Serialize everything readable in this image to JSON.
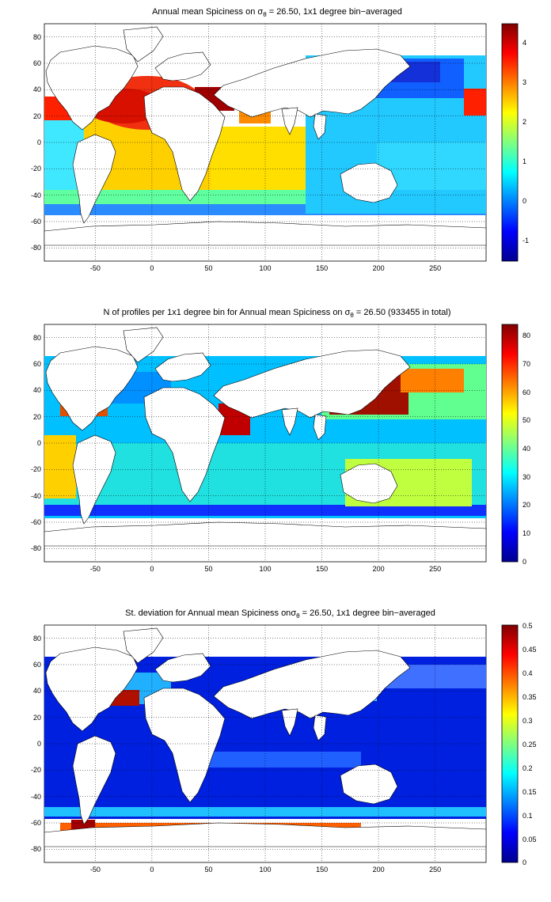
{
  "figure": {
    "background": "#ffffff",
    "panels": [
      {
        "title_before": "Annual mean Spiciness on ",
        "sigma": "σ",
        "theta": "θ",
        "title_after": " = 26.50, 1x1 degree bin−averaged",
        "variable": "Annual mean Spiciness",
        "x_ticks": [
          "-50",
          "0",
          "50",
          "100",
          "150",
          "200",
          "250"
        ],
        "y_ticks": [
          "80",
          "60",
          "40",
          "20",
          "0",
          "-20",
          "-40",
          "-60",
          "-80"
        ],
        "xlim": [
          -95,
          295
        ],
        "ylim": [
          -90,
          90
        ],
        "colorbar": {
          "ticks": [
            "4",
            "3",
            "2",
            "1",
            "0",
            "-1"
          ],
          "vmin": -1.5,
          "vmax": 4.5,
          "colormap": "jet"
        }
      },
      {
        "title_before": "N of profiles per 1x1 degree bin for Annual mean Spiciness on ",
        "sigma": "σ",
        "theta": "θ",
        "title_after": " = 26.50 (933455 in total)",
        "variable": "Number of profiles per bin",
        "x_ticks": [
          "-50",
          "0",
          "50",
          "100",
          "150",
          "200",
          "250"
        ],
        "y_ticks": [
          "80",
          "60",
          "40",
          "20",
          "0",
          "-20",
          "-40",
          "-60",
          "-80"
        ],
        "xlim": [
          -95,
          295
        ],
        "ylim": [
          -90,
          90
        ],
        "colorbar": {
          "ticks": [
            "80",
            "70",
            "60",
            "50",
            "40",
            "30",
            "20",
            "10",
            "0"
          ],
          "vmin": 0,
          "vmax": 84,
          "colormap": "jet"
        }
      },
      {
        "title_before": "St. deviation for Annual mean Spiciness on",
        "sigma": "σ",
        "theta": "θ",
        "title_after": " = 26.50, 1x1 degree bin−averaged",
        "variable": "Standard deviation of spiciness",
        "x_ticks": [
          "-50",
          "0",
          "50",
          "100",
          "150",
          "200",
          "250"
        ],
        "y_ticks": [
          "80",
          "60",
          "40",
          "20",
          "0",
          "-20",
          "-40",
          "-60",
          "-80"
        ],
        "xlim": [
          -95,
          295
        ],
        "ylim": [
          -90,
          90
        ],
        "colorbar": {
          "ticks": [
            "0.5",
            "0.45",
            "0.4",
            "0.35",
            "0.3",
            "0.25",
            "0.2",
            "0.15",
            "0.1",
            "0.05",
            "0"
          ],
          "vmin": 0,
          "vmax": 0.5,
          "colormap": "jet"
        }
      }
    ]
  }
}
